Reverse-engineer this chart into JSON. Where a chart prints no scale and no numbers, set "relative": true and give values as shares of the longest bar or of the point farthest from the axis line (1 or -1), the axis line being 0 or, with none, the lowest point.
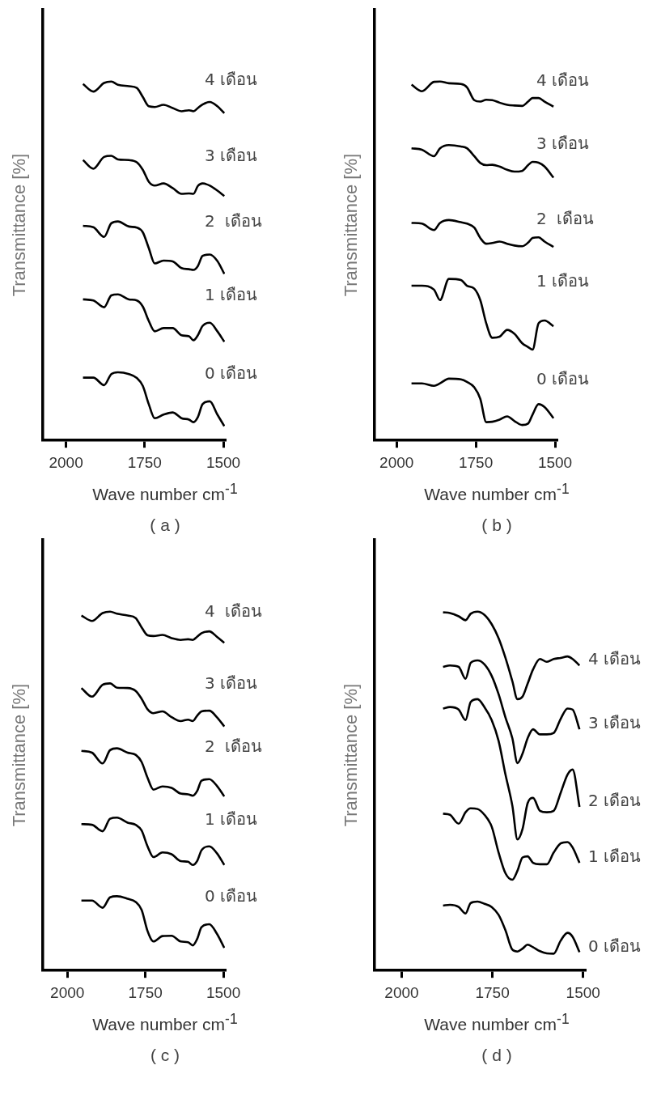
{
  "chart_data": [
    {
      "type": "line",
      "title": "( a )",
      "xlabel": "Wave number cm$^{-1}$",
      "ylabel": "Transmittance [%]",
      "relative": true,
      "xlim": [
        2075,
        1495
      ],
      "xticks": [
        2000,
        1750,
        1500
      ],
      "x": [
        1946,
        1913,
        1879,
        1856,
        1835,
        1800,
        1775,
        1756,
        1737,
        1718,
        1690,
        1661,
        1633,
        1609,
        1595,
        1581,
        1566,
        1543,
        1519,
        1497
      ],
      "series": [
        {
          "name": "0 เดือน",
          "color": "#000000",
          "values": [
            0.175,
            0.175,
            0.154,
            0.185,
            0.19,
            0.185,
            0.174,
            0.152,
            0.101,
            0.062,
            0.072,
            0.078,
            0.062,
            0.058,
            0.051,
            0.065,
            0.101,
            0.109,
            0.072,
            0.04
          ]
        },
        {
          "name": "1 เดือน",
          "color": "#000000",
          "values": [
            0.393,
            0.39,
            0.371,
            0.404,
            0.407,
            0.393,
            0.39,
            0.373,
            0.333,
            0.304,
            0.313,
            0.313,
            0.293,
            0.29,
            0.279,
            0.293,
            0.319,
            0.328,
            0.304,
            0.275
          ]
        },
        {
          "name": "2  เดือน",
          "color": "#000000",
          "values": [
            0.598,
            0.594,
            0.567,
            0.605,
            0.61,
            0.596,
            0.593,
            0.58,
            0.536,
            0.493,
            0.501,
            0.499,
            0.48,
            0.477,
            0.475,
            0.486,
            0.514,
            0.518,
            0.5,
            0.464
          ]
        },
        {
          "name": "3 เดือน",
          "color": "#000000",
          "values": [
            0.781,
            0.757,
            0.79,
            0.793,
            0.783,
            0.781,
            0.775,
            0.754,
            0.721,
            0.71,
            0.716,
            0.703,
            0.687,
            0.688,
            0.687,
            0.709,
            0.716,
            0.71,
            0.696,
            0.681
          ]
        },
        {
          "name": "4 เดือน",
          "color": "#000000",
          "values": [
            0.993,
            0.972,
            0.996,
            1.0,
            0.991,
            0.987,
            0.982,
            0.957,
            0.931,
            0.929,
            0.935,
            0.926,
            0.917,
            0.92,
            0.917,
            0.926,
            0.936,
            0.943,
            0.931,
            0.912
          ]
        }
      ]
    },
    {
      "type": "line",
      "title": "( b )",
      "xlabel": "Wave number cm$^{-1}$",
      "ylabel": "Transmittance [%]",
      "relative": true,
      "xlim": [
        2071,
        1495
      ],
      "xticks": [
        2000,
        1750,
        1500
      ],
      "x": [
        1953,
        1920,
        1882,
        1863,
        1835,
        1797,
        1778,
        1755,
        1736,
        1717,
        1698,
        1675,
        1651,
        1628,
        1604,
        1585,
        1571,
        1552,
        1533,
        1505
      ],
      "series": [
        {
          "name": "0 เดือน",
          "color": "#000000",
          "values": [
            0.159,
            0.159,
            0.152,
            0.159,
            0.172,
            0.17,
            0.163,
            0.148,
            0.116,
            0.051,
            0.052,
            0.058,
            0.067,
            0.054,
            0.043,
            0.047,
            0.072,
            0.101,
            0.093,
            0.062
          ]
        },
        {
          "name": "1 เดือน",
          "color": "#000000",
          "values": [
            0.431,
            0.431,
            0.42,
            0.391,
            0.45,
            0.447,
            0.431,
            0.423,
            0.391,
            0.326,
            0.286,
            0.289,
            0.308,
            0.297,
            0.271,
            0.26,
            0.253,
            0.326,
            0.334,
            0.318
          ]
        },
        {
          "name": "2  เดือน",
          "color": "#000000",
          "values": [
            0.606,
            0.604,
            0.586,
            0.606,
            0.614,
            0.608,
            0.604,
            0.593,
            0.564,
            0.548,
            0.55,
            0.554,
            0.548,
            0.543,
            0.541,
            0.551,
            0.564,
            0.566,
            0.554,
            0.539
          ]
        },
        {
          "name": "3 เดือน",
          "color": "#000000",
          "values": [
            0.814,
            0.81,
            0.792,
            0.814,
            0.823,
            0.819,
            0.814,
            0.792,
            0.773,
            0.767,
            0.768,
            0.763,
            0.754,
            0.749,
            0.751,
            0.767,
            0.776,
            0.774,
            0.763,
            0.732
          ]
        },
        {
          "name": "4 เดือน",
          "color": "#000000",
          "values": [
            0.991,
            0.973,
            0.999,
            1.0,
            0.995,
            0.993,
            0.984,
            0.948,
            0.944,
            0.949,
            0.948,
            0.941,
            0.935,
            0.933,
            0.932,
            0.944,
            0.954,
            0.954,
            0.944,
            0.93
          ]
        }
      ]
    },
    {
      "type": "line",
      "title": "( c )",
      "xlabel": "Wave number cm$^{-1}$",
      "ylabel": "Transmittance [%]",
      "relative": true,
      "xlim": [
        2080,
        1495
      ],
      "xticks": [
        2000,
        1750,
        1500
      ],
      "x": [
        1955,
        1921,
        1887,
        1863,
        1841,
        1807,
        1781,
        1762,
        1743,
        1724,
        1695,
        1666,
        1637,
        1613,
        1598,
        1584,
        1570,
        1545,
        1521,
        1497
      ],
      "series": [
        {
          "name": "0 เดือน",
          "color": "#000000",
          "values": [
            0.195,
            0.195,
            0.175,
            0.204,
            0.207,
            0.2,
            0.191,
            0.169,
            0.11,
            0.081,
            0.096,
            0.097,
            0.081,
            0.079,
            0.07,
            0.088,
            0.121,
            0.129,
            0.103,
            0.063
          ]
        },
        {
          "name": "1 เดือน",
          "color": "#000000",
          "values": [
            0.408,
            0.406,
            0.388,
            0.423,
            0.426,
            0.412,
            0.406,
            0.39,
            0.346,
            0.316,
            0.329,
            0.324,
            0.305,
            0.303,
            0.294,
            0.305,
            0.335,
            0.346,
            0.327,
            0.294
          ]
        },
        {
          "name": "2  เดือน",
          "color": "#000000",
          "values": [
            0.612,
            0.607,
            0.577,
            0.614,
            0.619,
            0.607,
            0.601,
            0.581,
            0.537,
            0.504,
            0.513,
            0.509,
            0.493,
            0.491,
            0.487,
            0.5,
            0.529,
            0.533,
            0.515,
            0.485
          ]
        },
        {
          "name": "3 เดือน",
          "color": "#000000",
          "values": [
            0.787,
            0.763,
            0.796,
            0.8,
            0.788,
            0.787,
            0.779,
            0.757,
            0.728,
            0.717,
            0.722,
            0.706,
            0.695,
            0.699,
            0.695,
            0.71,
            0.722,
            0.724,
            0.706,
            0.68
          ]
        },
        {
          "name": "4  เดือน",
          "color": "#000000",
          "values": [
            0.989,
            0.974,
            0.996,
            1.0,
            0.994,
            0.989,
            0.982,
            0.956,
            0.934,
            0.932,
            0.935,
            0.926,
            0.921,
            0.923,
            0.921,
            0.93,
            0.94,
            0.945,
            0.93,
            0.913
          ]
        }
      ]
    },
    {
      "type": "line",
      "title": "( d )",
      "xlabel": "Wave number cm$^{-1}$",
      "ylabel": "Transmittance [%]",
      "relative": true,
      "xlim": [
        2076,
        1495
      ],
      "xticks": [
        2000,
        1750,
        1500
      ],
      "x": [
        1886,
        1867,
        1843,
        1824,
        1810,
        1791,
        1772,
        1752,
        1733,
        1714,
        1695,
        1681,
        1667,
        1653,
        1638,
        1619,
        1600,
        1581,
        1562,
        1543,
        1529,
        1510
      ],
      "series": [
        {
          "name": "0 เดือน",
          "color": "#000000",
          "values": [
            0.181,
            0.183,
            0.177,
            0.159,
            0.188,
            0.192,
            0.186,
            0.177,
            0.155,
            0.112,
            0.058,
            0.053,
            0.061,
            0.072,
            0.065,
            0.054,
            0.048,
            0.047,
            0.083,
            0.105,
            0.094,
            0.051
          ]
        },
        {
          "name": "1 เดือน",
          "color": "#000000",
          "values": [
            0.437,
            0.434,
            0.409,
            0.441,
            0.452,
            0.45,
            0.434,
            0.401,
            0.329,
            0.271,
            0.253,
            0.278,
            0.315,
            0.318,
            0.3,
            0.296,
            0.296,
            0.329,
            0.354,
            0.358,
            0.343,
            0.3
          ]
        },
        {
          "name": "2 เดือน",
          "color": "#000000",
          "values": [
            0.73,
            0.734,
            0.727,
            0.698,
            0.748,
            0.756,
            0.734,
            0.698,
            0.64,
            0.546,
            0.459,
            0.365,
            0.394,
            0.466,
            0.481,
            0.445,
            0.441,
            0.445,
            0.495,
            0.546,
            0.56,
            0.456
          ]
        },
        {
          "name": "3 เดือน",
          "color": "#000000",
          "values": [
            0.846,
            0.85,
            0.846,
            0.813,
            0.857,
            0.864,
            0.853,
            0.821,
            0.77,
            0.705,
            0.647,
            0.578,
            0.604,
            0.647,
            0.672,
            0.658,
            0.658,
            0.662,
            0.701,
            0.73,
            0.727,
            0.672
          ]
        },
        {
          "name": "4 เดือน",
          "color": "#000000",
          "values": [
            0.998,
            0.996,
            0.987,
            0.976,
            0.994,
            1.0,
            0.991,
            0.965,
            0.926,
            0.871,
            0.806,
            0.756,
            0.763,
            0.799,
            0.839,
            0.868,
            0.86,
            0.868,
            0.871,
            0.875,
            0.868,
            0.85
          ]
        }
      ]
    }
  ]
}
